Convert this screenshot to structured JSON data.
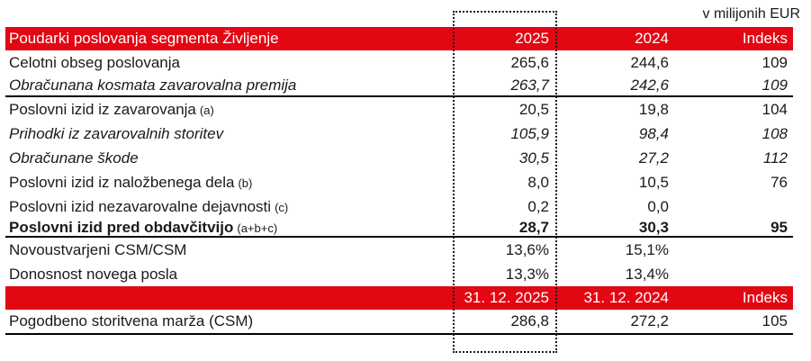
{
  "unit_label": "v milijonih EUR",
  "colors": {
    "accent_red": "#e30613",
    "header_text": "#ffffff",
    "body_text": "#1a1a1a"
  },
  "table": {
    "header": {
      "title": "Poudarki poslovanja segmenta Življenje",
      "col_2025": "2025",
      "col_2024": "2024",
      "col_index": "Indeks"
    },
    "rows": [
      {
        "label": "Celotni obseg poslovanja",
        "v2025": "265,6",
        "v2024": "244,6",
        "indeks": "109"
      },
      {
        "label": "Obračunana kosmata zavarovalna premija",
        "v2025": "263,7",
        "v2024": "242,6",
        "indeks": "109"
      },
      {
        "label": "Poslovni izid iz zavarovanja",
        "suffix": "(a)",
        "v2025": "20,5",
        "v2024": "19,8",
        "indeks": "104"
      },
      {
        "label": "Prihodki iz zavarovalnih storitev",
        "v2025": "105,9",
        "v2024": "98,4",
        "indeks": "108"
      },
      {
        "label": "Obračunane škode",
        "v2025": "30,5",
        "v2024": "27,2",
        "indeks": "112"
      },
      {
        "label": "Poslovni izid iz naložbenega dela",
        "suffix": "(b)",
        "v2025": "8,0",
        "v2024": "10,5",
        "indeks": "76"
      },
      {
        "label": "Poslovni izid nezavarovalne dejavnosti",
        "suffix": "(c)",
        "v2025": "0,2",
        "v2024": "0,0",
        "indeks": ""
      },
      {
        "label": "Poslovni izid pred obdavčitvijo",
        "suffix": "(a+b+c)",
        "v2025": "28,7",
        "v2024": "30,3",
        "indeks": "95"
      },
      {
        "label": "Novoustvarjeni CSM/CSM",
        "v2025": "13,6%",
        "v2024": "15,1%",
        "indeks": ""
      },
      {
        "label": "Donosnost novega posla",
        "v2025": "13,3%",
        "v2024": "13,4%",
        "indeks": ""
      }
    ],
    "header2": {
      "title": "",
      "col_2025": "31. 12. 2025",
      "col_2024": "31. 12. 2024",
      "col_index": "Indeks"
    },
    "rows2": [
      {
        "label": "Pogodbeno storitvena marža (CSM)",
        "v2025": "286,8",
        "v2024": "272,2",
        "indeks": "105"
      }
    ]
  }
}
